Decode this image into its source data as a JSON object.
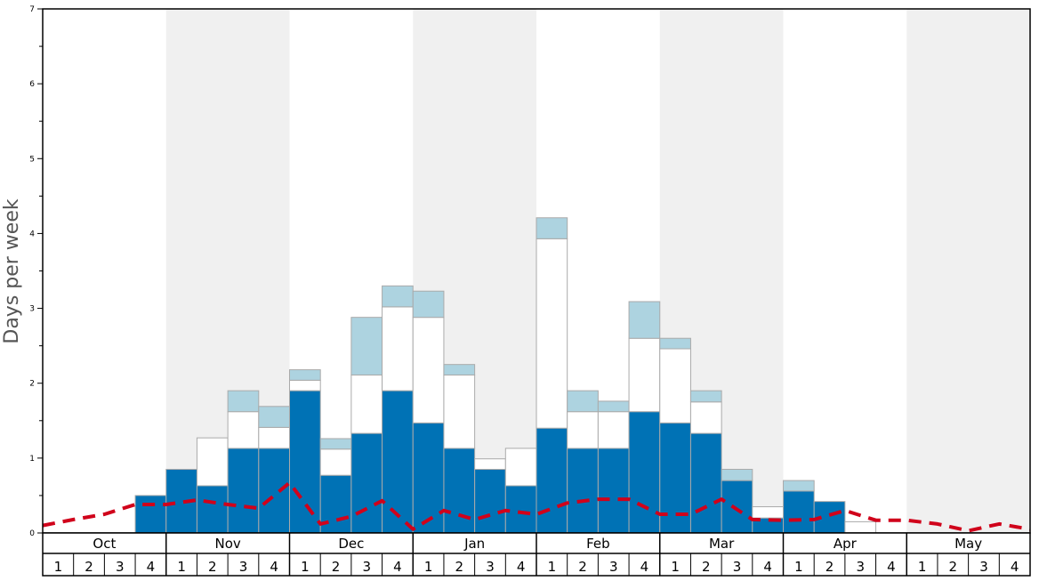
{
  "chart_data": {
    "type": "bar",
    "stacked": true,
    "ylabel": "Days per week",
    "ylim": [
      0,
      7
    ],
    "yticks": [
      "0",
      "1",
      "2",
      "3",
      "4",
      "5",
      "6",
      "7"
    ],
    "months": [
      "Oct",
      "Nov",
      "Dec",
      "Jan",
      "Feb",
      "Mar",
      "Apr",
      "May"
    ],
    "week_labels": [
      "1",
      "2",
      "3",
      "4"
    ],
    "shaded_months": [
      "Nov",
      "Jan",
      "Mar",
      "May"
    ],
    "grid": false,
    "legend": "none",
    "colors": {
      "dark": "#0072b5",
      "white": "#ffffff",
      "light": "#add3e0",
      "dashed_line": "#d0021b",
      "shade": "#f0f0f0",
      "bar_edge": "#aaaaaa"
    },
    "series": [
      {
        "key": "dark",
        "values": [
          0,
          0,
          0,
          0.5,
          0.85,
          0.63,
          1.13,
          1.13,
          1.9,
          0.77,
          1.33,
          1.9,
          1.47,
          1.13,
          0.85,
          0.63,
          1.4,
          1.13,
          1.13,
          1.62,
          1.47,
          1.33,
          0.7,
          0.2,
          0.56,
          0.42,
          0,
          0,
          0,
          0,
          0,
          0
        ]
      },
      {
        "key": "white",
        "values": [
          0,
          0,
          0,
          0,
          0,
          0.64,
          0.49,
          0.28,
          0.14,
          0.35,
          0.78,
          1.12,
          1.41,
          0.98,
          0.14,
          0.5,
          2.53,
          0.49,
          0.49,
          0.98,
          0.99,
          0.42,
          0,
          0.15,
          0,
          0,
          0.15,
          0,
          0,
          0,
          0,
          0
        ]
      },
      {
        "key": "light",
        "values": [
          0,
          0,
          0,
          0,
          0,
          0,
          0.28,
          0.28,
          0.14,
          0.14,
          0.77,
          0.28,
          0.35,
          0.14,
          0,
          0,
          0.28,
          0.28,
          0.14,
          0.49,
          0.14,
          0.15,
          0.15,
          0,
          0.14,
          0,
          0,
          0,
          0,
          0,
          0,
          0
        ]
      }
    ],
    "line": {
      "key": "dashed_line",
      "style": "dashed",
      "values": [
        0.1,
        0.18,
        0.25,
        0.38,
        0.38,
        0.44,
        0.38,
        0.33,
        0.67,
        0.12,
        0.22,
        0.43,
        0.05,
        0.3,
        0.18,
        0.3,
        0.25,
        0.4,
        0.45,
        0.45,
        0.25,
        0.25,
        0.45,
        0.18,
        0.17,
        0.18,
        0.3,
        0.17,
        0.17,
        0.12,
        0.03,
        0.12,
        0.05
      ]
    }
  }
}
